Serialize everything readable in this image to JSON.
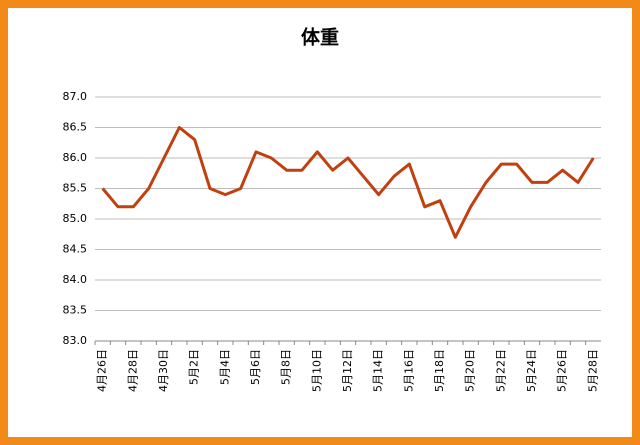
{
  "chart_data": {
    "type": "line",
    "title": "体重",
    "categories": [
      "4月26日",
      null,
      "4月28日",
      null,
      "4月30日",
      null,
      "5月2日",
      null,
      "5月4日",
      null,
      "5月6日",
      null,
      "5月8日",
      null,
      "5月10日",
      null,
      "5月12日",
      null,
      "5月14日",
      null,
      "5月16日",
      null,
      "5月18日",
      null,
      "5月20日",
      null,
      "5月22日",
      null,
      "5月24日",
      null,
      "5月26日",
      null,
      "5月28日"
    ],
    "series": [
      {
        "color": "#c0410f",
        "values": [
          85.5,
          85.2,
          85.2,
          85.5,
          86.0,
          86.5,
          86.3,
          85.5,
          85.4,
          85.5,
          86.1,
          86.0,
          85.8,
          85.8,
          86.1,
          85.8,
          86.0,
          85.7,
          85.4,
          85.7,
          85.9,
          85.2,
          85.3,
          84.7,
          85.2,
          85.6,
          85.9,
          85.9,
          85.6,
          85.6,
          85.8,
          85.6,
          86.0
        ]
      }
    ],
    "ylim": [
      83,
      87
    ],
    "yticks": [
      {
        "value": 83,
        "label": "83.0"
      },
      {
        "value": 83.5,
        "label": "83.5"
      },
      {
        "value": 84,
        "label": "84.0"
      },
      {
        "value": 84.5,
        "label": "84.5"
      },
      {
        "value": 85,
        "label": "85.0"
      },
      {
        "value": 85.5,
        "label": "85.5"
      },
      {
        "value": 86,
        "label": "86.0"
      },
      {
        "value": 86.5,
        "label": "86.5"
      },
      {
        "value": 87,
        "label": "87.0"
      }
    ],
    "grid": true
  }
}
